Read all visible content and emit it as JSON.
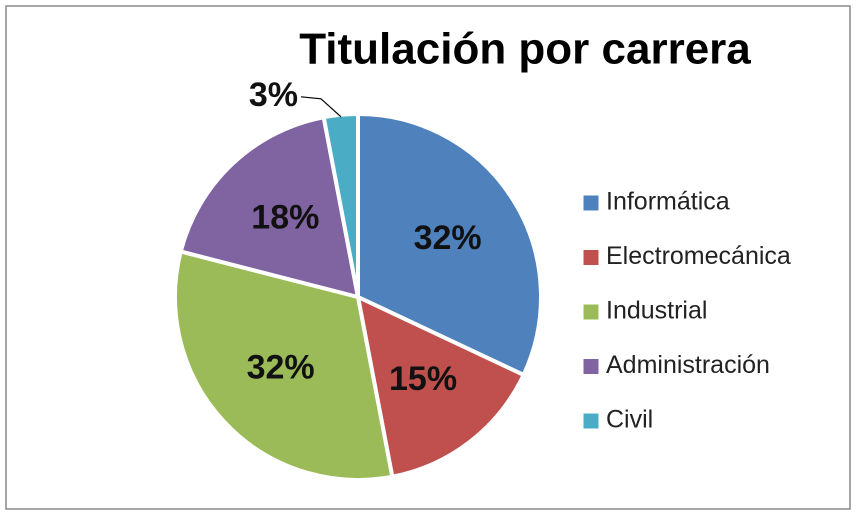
{
  "chart_data": {
    "type": "pie",
    "title": "Titulación por carrera",
    "categories": [
      "Informática",
      "Electromecánica",
      "Industrial",
      "Administración",
      "Civil"
    ],
    "values": [
      32,
      15,
      32,
      18,
      3
    ],
    "value_labels": [
      "32%",
      "15%",
      "32%",
      "18%",
      "3%"
    ],
    "colors": [
      "#4f81bd",
      "#c0504d",
      "#9bbb59",
      "#8064a2",
      "#4bacc6"
    ],
    "legend": "right"
  }
}
